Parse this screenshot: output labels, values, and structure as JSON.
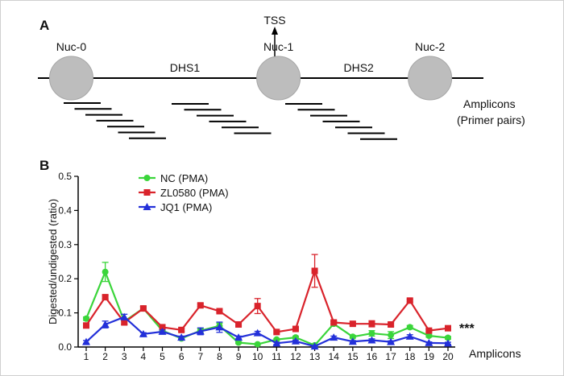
{
  "panel_a": {
    "label": "A",
    "tss_label": "TSS",
    "nucleosomes": [
      {
        "label": "Nuc-0",
        "pos": 0.075
      },
      {
        "label": "Nuc-1",
        "pos": 0.54
      },
      {
        "label": "Nuc-2",
        "pos": 0.88
      }
    ],
    "dhs_labels": [
      {
        "label": "DHS1",
        "pos": 0.33
      },
      {
        "label": "DHS2",
        "pos": 0.72
      }
    ],
    "amplicons_label_line1": "Amplicons",
    "amplicons_label_line2": "(Primer pairs)",
    "amplicon_count": 20
  },
  "chart_data": {
    "type": "line",
    "panel_label": "B",
    "title": "",
    "ylabel": "Digested/undigested (ratio)",
    "xlabel": "Amplicons",
    "ylim": [
      0,
      0.5
    ],
    "yticks": [
      "0.0",
      "0.1",
      "0.2",
      "0.3",
      "0.4",
      "0.5"
    ],
    "x": [
      1,
      2,
      3,
      4,
      5,
      6,
      7,
      8,
      9,
      10,
      11,
      12,
      13,
      14,
      15,
      16,
      17,
      18,
      19,
      20
    ],
    "legend_position": "top-left",
    "annotation": "***",
    "series": [
      {
        "name": "NC (PMA)",
        "color": "#3ad53a",
        "marker": "circle",
        "values": [
          0.083,
          0.22,
          0.075,
          0.113,
          0.048,
          0.025,
          0.048,
          0.062,
          0.013,
          0.008,
          0.022,
          0.028,
          0.005,
          0.068,
          0.03,
          0.04,
          0.035,
          0.058,
          0.033,
          0.027
        ],
        "errors": [
          0.005,
          0.028,
          0.008,
          0.006,
          0.005,
          0.004,
          0.006,
          0.008,
          0.003,
          0.003,
          0.003,
          0.004,
          0.002,
          0.006,
          0.004,
          0.008,
          0.01,
          0.005,
          0.004,
          0.004
        ]
      },
      {
        "name": "ZL0580 (PMA)",
        "color": "#d9232b",
        "marker": "square",
        "values": [
          0.063,
          0.146,
          0.072,
          0.113,
          0.058,
          0.05,
          0.122,
          0.105,
          0.066,
          0.12,
          0.044,
          0.053,
          0.223,
          0.072,
          0.068,
          0.068,
          0.066,
          0.136,
          0.048,
          0.055
        ],
        "errors": [
          0.004,
          0.005,
          0.006,
          0.005,
          0.005,
          0.004,
          0.004,
          0.004,
          0.004,
          0.022,
          0.003,
          0.004,
          0.048,
          0.004,
          0.005,
          0.009,
          0.005,
          0.004,
          0.004,
          0.004
        ]
      },
      {
        "name": "JQ1 (PMA)",
        "color": "#2330d9",
        "marker": "triangle",
        "values": [
          0.015,
          0.066,
          0.088,
          0.038,
          0.045,
          0.028,
          0.046,
          0.058,
          0.028,
          0.041,
          0.011,
          0.017,
          0.002,
          0.028,
          0.016,
          0.02,
          0.015,
          0.031,
          0.012,
          0.011
        ],
        "errors": [
          0.004,
          0.01,
          0.008,
          0.004,
          0.005,
          0.004,
          0.01,
          0.015,
          0.004,
          0.005,
          0.003,
          0.003,
          0.002,
          0.004,
          0.003,
          0.004,
          0.003,
          0.005,
          0.003,
          0.003
        ]
      }
    ]
  }
}
